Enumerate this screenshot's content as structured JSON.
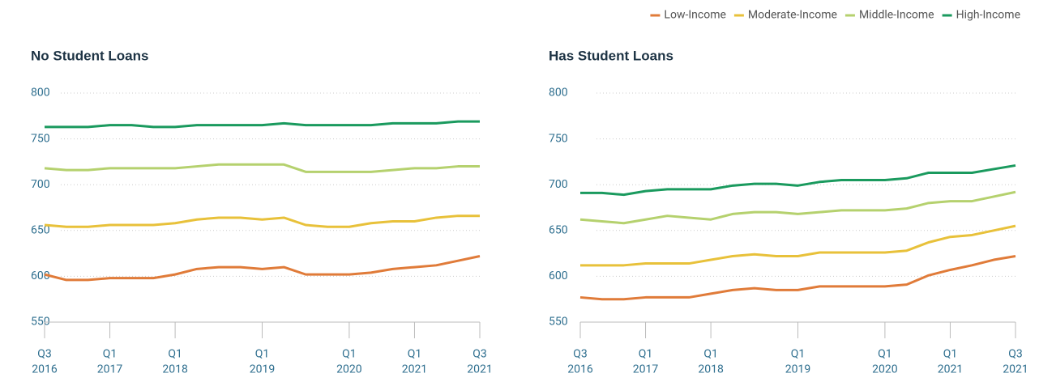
{
  "legend": [
    {
      "name": "Low-Income",
      "color": "#e07b39"
    },
    {
      "name": "Moderate-Income",
      "color": "#e8c13a"
    },
    {
      "name": "Middle-Income",
      "color": "#b5d16e"
    },
    {
      "name": "High-Income",
      "color": "#1a9a5e"
    }
  ],
  "chart_data": [
    {
      "type": "line",
      "title": "No Student Loans",
      "categories": [
        "Q3",
        null,
        null,
        "Q1",
        null,
        null,
        "Q1",
        null,
        null,
        null,
        "Q1",
        null,
        null,
        null,
        "Q1",
        null,
        null,
        "Q1",
        null,
        null,
        "Q3"
      ],
      "years": [
        "2016",
        null,
        null,
        "2017",
        null,
        null,
        "2018",
        null,
        null,
        null,
        "2019",
        null,
        null,
        null,
        "2020",
        null,
        null,
        "2021",
        null,
        null,
        "2021"
      ],
      "ylim": [
        550,
        800
      ],
      "yticks": [
        550,
        600,
        650,
        700,
        750,
        800
      ],
      "grid": true,
      "series": [
        {
          "values": [
            602,
            596,
            596,
            598,
            598,
            598,
            602,
            608,
            610,
            610,
            608,
            610,
            602,
            602,
            602,
            604,
            608,
            610,
            612,
            617,
            622
          ]
        },
        {
          "values": [
            656,
            654,
            654,
            656,
            656,
            656,
            658,
            662,
            664,
            664,
            662,
            664,
            656,
            654,
            654,
            658,
            660,
            660,
            664,
            666,
            666
          ]
        },
        {
          "values": [
            718,
            716,
            716,
            718,
            718,
            718,
            718,
            720,
            722,
            722,
            722,
            722,
            714,
            714,
            714,
            714,
            716,
            718,
            718,
            720,
            720
          ]
        },
        {
          "values": [
            763,
            763,
            763,
            765,
            765,
            763,
            763,
            765,
            765,
            765,
            765,
            767,
            765,
            765,
            765,
            765,
            767,
            767,
            767,
            769,
            769
          ]
        }
      ]
    },
    {
      "type": "line",
      "title": "Has Student Loans",
      "categories": [
        "Q3",
        null,
        null,
        "Q1",
        null,
        null,
        "Q1",
        null,
        null,
        null,
        "Q1",
        null,
        null,
        null,
        "Q1",
        null,
        null,
        "Q1",
        null,
        null,
        "Q3"
      ],
      "years": [
        "2016",
        null,
        null,
        "2017",
        null,
        null,
        "2018",
        null,
        null,
        null,
        "2019",
        null,
        null,
        null,
        "2020",
        null,
        null,
        "2021",
        null,
        null,
        "2021"
      ],
      "ylim": [
        550,
        800
      ],
      "yticks": [
        550,
        600,
        650,
        700,
        750,
        800
      ],
      "grid": true,
      "series": [
        {
          "values": [
            577,
            575,
            575,
            577,
            577,
            577,
            581,
            585,
            587,
            585,
            585,
            589,
            589,
            589,
            589,
            591,
            601,
            607,
            612,
            618,
            622
          ]
        },
        {
          "values": [
            612,
            612,
            612,
            614,
            614,
            614,
            618,
            622,
            624,
            622,
            622,
            626,
            626,
            626,
            626,
            628,
            637,
            643,
            645,
            650,
            655
          ]
        },
        {
          "values": [
            662,
            660,
            658,
            662,
            666,
            664,
            662,
            668,
            670,
            670,
            668,
            670,
            672,
            672,
            672,
            674,
            680,
            682,
            682,
            687,
            692
          ]
        },
        {
          "values": [
            691,
            691,
            689,
            693,
            695,
            695,
            695,
            699,
            701,
            701,
            699,
            703,
            705,
            705,
            705,
            707,
            713,
            713,
            713,
            717,
            721
          ]
        }
      ]
    }
  ]
}
